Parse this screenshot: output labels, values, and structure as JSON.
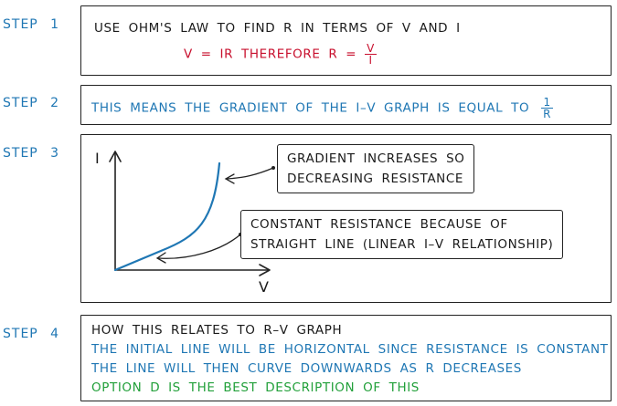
{
  "steps": [
    {
      "label": "STEP 1"
    },
    {
      "label": "STEP 2"
    },
    {
      "label": "STEP 3"
    },
    {
      "label": "STEP 4"
    }
  ],
  "step1": {
    "line1": "USE OHM'S LAW TO FIND R IN TERMS OF V AND I",
    "eq_prefix": "V = IR   THEREFORE  R =",
    "eq_num": "V",
    "eq_den": "I"
  },
  "step2": {
    "text": "THIS MEANS THE GRADIENT OF THE I–V GRAPH IS EQUAL TO",
    "frac_num": "1",
    "frac_den": "R"
  },
  "step3": {
    "y_axis_label": "I",
    "x_axis_label": "V",
    "callout_top": [
      "GRADIENT INCREASES SO",
      "DECREASING RESISTANCE"
    ],
    "callout_bottom": [
      "CONSTANT RESISTANCE BECAUSE OF",
      "STRAIGHT LINE (LINEAR I–V RELATIONSHIP)"
    ]
  },
  "step4": {
    "line1": "HOW THIS RELATES TO R–V GRAPH",
    "line2": "THE INITIAL LINE WILL BE HORIZONTAL SINCE RESISTANCE IS CONSTANT",
    "line3": "THE LINE WILL THEN CURVE DOWNWARDS AS R DECREASES",
    "line4": "OPTION D IS THE BEST DESCRIPTION OF THIS"
  },
  "colors": {
    "step_label": "#1f77b4",
    "red": "#c8102e",
    "blue": "#1f77b4",
    "green": "#22a03a",
    "curve": "#1f77b4"
  }
}
